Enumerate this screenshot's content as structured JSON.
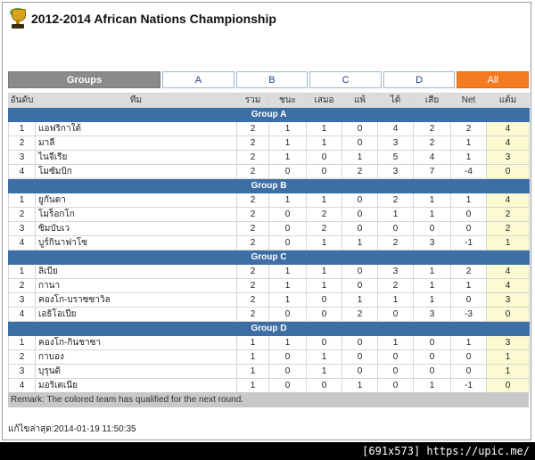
{
  "page": {
    "title": "2012-2014 African Nations Championship",
    "updated": "แก้ไขล่าสุด:2014-01-19 11:50:35",
    "remark": "Remark: The colored team has qualified for the next round.",
    "watermark": "[691x573] https://upic.me/"
  },
  "tabs": {
    "groups": "Groups",
    "a": "A",
    "b": "B",
    "c": "C",
    "d": "D",
    "all": "All"
  },
  "table": {
    "headers": [
      "อันดับ",
      "ทีม",
      "รวม",
      "ชนะ",
      "เสมอ",
      "แพ้",
      "ได้",
      "เสีย",
      "Net",
      "แต้ม"
    ],
    "groups": [
      {
        "name": "Group A",
        "rows": [
          [
            "1",
            "แอฟริกาใต้",
            "2",
            "1",
            "1",
            "0",
            "4",
            "2",
            "2",
            "4"
          ],
          [
            "2",
            "มาลี",
            "2",
            "1",
            "1",
            "0",
            "3",
            "2",
            "1",
            "4"
          ],
          [
            "3",
            "ไนจีเรีย",
            "2",
            "1",
            "0",
            "1",
            "5",
            "4",
            "1",
            "3"
          ],
          [
            "4",
            "โมซัมบิก",
            "2",
            "0",
            "0",
            "2",
            "3",
            "7",
            "-4",
            "0"
          ]
        ]
      },
      {
        "name": "Group B",
        "rows": [
          [
            "1",
            "ยูกันดา",
            "2",
            "1",
            "1",
            "0",
            "2",
            "1",
            "1",
            "4"
          ],
          [
            "2",
            "โมร็อกโก",
            "2",
            "0",
            "2",
            "0",
            "1",
            "1",
            "0",
            "2"
          ],
          [
            "3",
            "ซิมบับเว",
            "2",
            "0",
            "2",
            "0",
            "0",
            "0",
            "0",
            "2"
          ],
          [
            "4",
            "บูร์กินาฟาโซ",
            "2",
            "0",
            "1",
            "1",
            "2",
            "3",
            "-1",
            "1"
          ]
        ]
      },
      {
        "name": "Group C",
        "rows": [
          [
            "1",
            "ลิเบีย",
            "2",
            "1",
            "1",
            "0",
            "3",
            "1",
            "2",
            "4"
          ],
          [
            "2",
            "กานา",
            "2",
            "1",
            "1",
            "0",
            "2",
            "1",
            "1",
            "4"
          ],
          [
            "3",
            "คองโก-บราซซาวิล",
            "2",
            "1",
            "0",
            "1",
            "1",
            "1",
            "0",
            "3"
          ],
          [
            "4",
            "เอธิโอเปีย",
            "2",
            "0",
            "0",
            "2",
            "0",
            "3",
            "-3",
            "0"
          ]
        ]
      },
      {
        "name": "Group D",
        "rows": [
          [
            "1",
            "คองโก-กินชาซา",
            "1",
            "1",
            "0",
            "0",
            "1",
            "0",
            "1",
            "3"
          ],
          [
            "2",
            "กาบอง",
            "1",
            "0",
            "1",
            "0",
            "0",
            "0",
            "0",
            "1"
          ],
          [
            "3",
            "บุรุนดิ",
            "1",
            "0",
            "1",
            "0",
            "0",
            "0",
            "0",
            "1"
          ],
          [
            "4",
            "มอริเตเนีย",
            "1",
            "0",
            "0",
            "1",
            "0",
            "1",
            "-1",
            "0"
          ]
        ]
      }
    ]
  },
  "colors": {
    "group_header": "#3d6ea5",
    "all_tab": "#f47b20",
    "groups_tab": "#8a8a8a",
    "points_cell": "#fbfad0"
  }
}
